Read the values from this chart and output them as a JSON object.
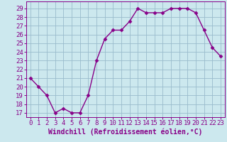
{
  "x": [
    0,
    1,
    2,
    3,
    4,
    5,
    6,
    7,
    8,
    9,
    10,
    11,
    12,
    13,
    14,
    15,
    16,
    17,
    18,
    19,
    20,
    21,
    22,
    23
  ],
  "y": [
    21.0,
    20.0,
    19.0,
    17.0,
    17.5,
    17.0,
    17.0,
    19.0,
    23.0,
    25.5,
    26.5,
    26.5,
    27.5,
    29.0,
    28.5,
    28.5,
    28.5,
    29.0,
    29.0,
    29.0,
    28.5,
    26.5,
    24.5,
    23.5
  ],
  "line_color": "#880088",
  "bg_color": "#cce8ee",
  "grid_color": "#99bbcc",
  "xlabel": "Windchill (Refroidissement éolien,°C)",
  "xlabel_color": "#880088",
  "ylim": [
    16.5,
    29.8
  ],
  "xlim": [
    -0.5,
    23.5
  ],
  "yticks": [
    17,
    18,
    19,
    20,
    21,
    22,
    23,
    24,
    25,
    26,
    27,
    28,
    29
  ],
  "xticks": [
    0,
    1,
    2,
    3,
    4,
    5,
    6,
    7,
    8,
    9,
    10,
    11,
    12,
    13,
    14,
    15,
    16,
    17,
    18,
    19,
    20,
    21,
    22,
    23
  ],
  "tick_color": "#880088",
  "marker": "D",
  "marker_size": 2.5,
  "line_width": 1.0,
  "font_size": 6.5,
  "xlabel_fontsize": 7.0
}
